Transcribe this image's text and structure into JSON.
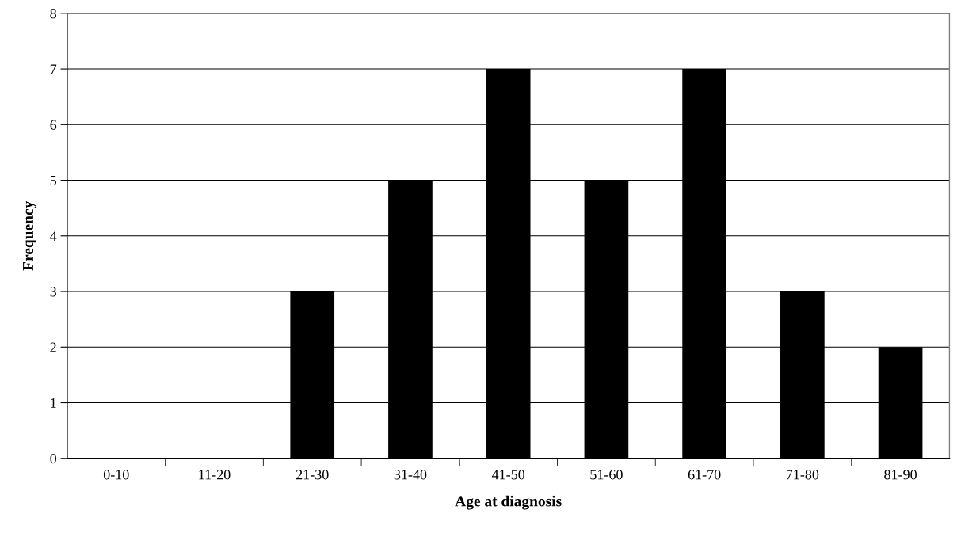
{
  "chart_data": {
    "type": "bar",
    "xlabel": "Age at diagnosis",
    "ylabel": "Frequency",
    "categories": [
      "0-10",
      "11-20",
      "21-30",
      "31-40",
      "41-50",
      "51-60",
      "61-70",
      "71-80",
      "81-90"
    ],
    "values": [
      0,
      0,
      3,
      5,
      7,
      5,
      7,
      3,
      2
    ],
    "color": "#000000",
    "ylim": [
      0,
      8
    ],
    "yticks": [
      0,
      1,
      2,
      3,
      4,
      5,
      6,
      7,
      8
    ],
    "grid": "y"
  }
}
